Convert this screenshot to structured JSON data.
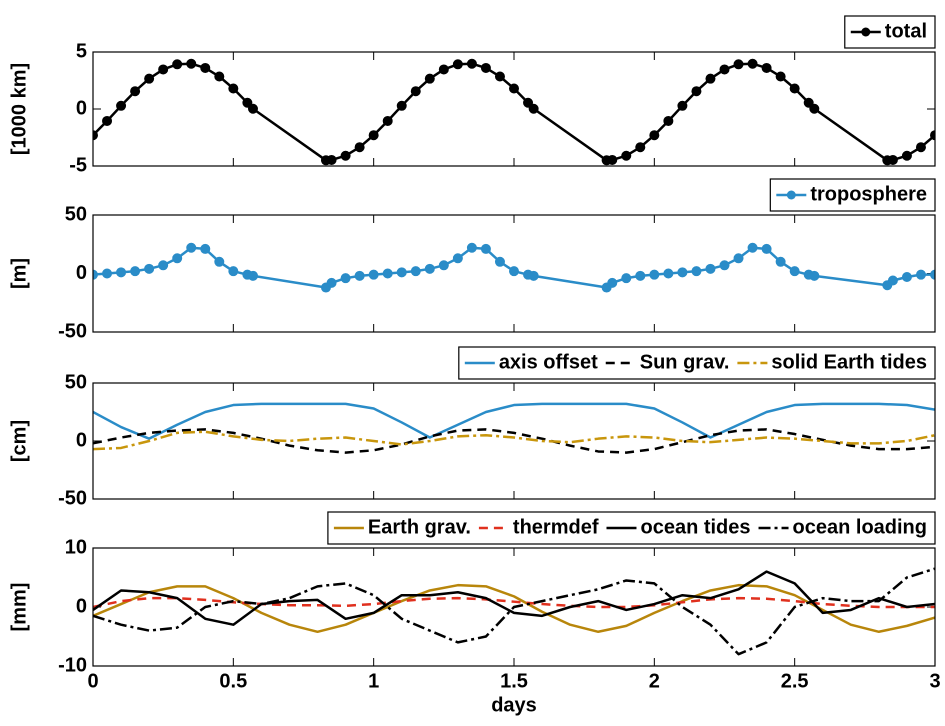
{
  "chart_data": [
    {
      "type": "line",
      "ylabel": "[1000 km]",
      "legend": "upper right outside",
      "x": [
        0,
        0.05,
        0.1,
        0.15,
        0.2,
        0.25,
        0.3,
        0.35,
        0.4,
        0.45,
        0.5,
        0.55,
        0.57,
        0.83,
        0.85,
        0.9,
        0.95,
        1,
        1.05,
        1.1,
        1.15,
        1.2,
        1.25,
        1.3,
        1.35,
        1.4,
        1.45,
        1.5,
        1.55,
        1.57,
        1.83,
        1.85,
        1.9,
        1.95,
        2,
        2.05,
        2.1,
        2.15,
        2.2,
        2.25,
        2.3,
        2.35,
        2.4,
        2.45,
        2.5,
        2.55,
        2.57,
        2.83,
        2.85,
        2.9,
        2.95,
        3
      ],
      "xlim": [
        0,
        3
      ],
      "ylim": [
        -5,
        5
      ],
      "yticks": [
        -5,
        0,
        5
      ],
      "series": [
        {
          "name": "total",
          "color": "#000000",
          "dash": "solid",
          "marker": true,
          "values": [
            -2.3,
            -1.05,
            0.28,
            1.56,
            2.66,
            3.47,
            3.92,
            3.97,
            3.6,
            2.85,
            1.8,
            0.55,
            0.02,
            -4.5,
            -4.47,
            -4.1,
            -3.35,
            -2.3,
            -1.05,
            0.28,
            1.56,
            2.66,
            3.47,
            3.92,
            3.97,
            3.6,
            2.85,
            1.8,
            0.55,
            0.02,
            -4.5,
            -4.47,
            -4.1,
            -3.35,
            -2.3,
            -1.05,
            0.28,
            1.56,
            2.66,
            3.47,
            3.92,
            3.97,
            3.6,
            2.85,
            1.8,
            0.55,
            0.02,
            -4.5,
            -4.47,
            -4.1,
            -3.35,
            -2.3
          ]
        }
      ]
    },
    {
      "type": "line",
      "ylabel": "[m]",
      "legend": "upper right outside",
      "x": [
        0,
        0.05,
        0.1,
        0.15,
        0.2,
        0.25,
        0.3,
        0.35,
        0.4,
        0.45,
        0.5,
        0.55,
        0.57,
        0.83,
        0.85,
        0.9,
        0.95,
        1,
        1.05,
        1.1,
        1.15,
        1.2,
        1.25,
        1.3,
        1.35,
        1.4,
        1.45,
        1.5,
        1.55,
        1.57,
        1.83,
        1.85,
        1.9,
        1.95,
        2,
        2.05,
        2.1,
        2.15,
        2.2,
        2.25,
        2.3,
        2.35,
        2.4,
        2.45,
        2.5,
        2.55,
        2.57,
        2.83,
        2.85,
        2.9,
        2.95,
        3
      ],
      "xlim": [
        0,
        3
      ],
      "ylim": [
        -50,
        50
      ],
      "yticks": [
        -50,
        0,
        50
      ],
      "series": [
        {
          "name": "troposphere",
          "color": "#2a8cc8",
          "dash": "solid",
          "marker": true,
          "values": [
            -1,
            0,
            1,
            2,
            4,
            7,
            13,
            22,
            21,
            10,
            2,
            -1,
            -2,
            -12,
            -8,
            -4,
            -2,
            -1,
            0,
            1,
            2,
            4,
            7,
            13,
            22,
            21,
            10,
            2,
            -1,
            -2,
            -12,
            -8,
            -4,
            -2,
            -1,
            0,
            1,
            2,
            4,
            7,
            13,
            22,
            21,
            10,
            2,
            -1,
            -2,
            -10,
            -6,
            -3,
            -1,
            -1
          ]
        }
      ]
    },
    {
      "type": "line",
      "ylabel": "[cm]",
      "legend": "upper right outside",
      "x": [
        0,
        0.1,
        0.2,
        0.3,
        0.4,
        0.5,
        0.6,
        0.7,
        0.8,
        0.9,
        1,
        1.1,
        1.2,
        1.3,
        1.4,
        1.5,
        1.6,
        1.7,
        1.8,
        1.9,
        2,
        2.1,
        2.2,
        2.3,
        2.4,
        2.5,
        2.6,
        2.7,
        2.8,
        2.9,
        3
      ],
      "xlim": [
        0,
        3
      ],
      "ylim": [
        -50,
        50
      ],
      "yticks": [
        -50,
        0,
        50
      ],
      "series": [
        {
          "name": "axis offset",
          "color": "#2a8cc8",
          "dash": "solid",
          "marker": false,
          "values": [
            25,
            12,
            2,
            14,
            25,
            31,
            32,
            32,
            32,
            32,
            28,
            16,
            3,
            14,
            25,
            31,
            32,
            32,
            32,
            32,
            28,
            16,
            3,
            14,
            25,
            31,
            32,
            32,
            32,
            31,
            27
          ]
        },
        {
          "name": "Sun grav.",
          "color": "#000000",
          "dash": "dashed",
          "marker": false,
          "values": [
            -2,
            3,
            7,
            9,
            10,
            7,
            2,
            -4,
            -8,
            -10,
            -8,
            -3,
            4,
            9,
            10,
            7,
            2,
            -4,
            -9,
            -10,
            -7,
            -1,
            5,
            9,
            10,
            6,
            1,
            -4,
            -7,
            -7,
            -5
          ]
        },
        {
          "name": "solid Earth tides",
          "color": "#c8960c",
          "dash": "dashdot",
          "marker": false,
          "values": [
            -7,
            -6,
            0,
            7,
            8,
            4,
            1,
            0,
            2,
            3,
            0,
            -3,
            0,
            4,
            5,
            3,
            0,
            -1,
            2,
            4,
            3,
            0,
            -1,
            1,
            3,
            2,
            0,
            -2,
            -2,
            0,
            5
          ]
        }
      ]
    },
    {
      "type": "line",
      "ylabel": "[mm]",
      "xlabel": "days",
      "legend": "upper right outside",
      "x": [
        0,
        0.1,
        0.2,
        0.3,
        0.4,
        0.5,
        0.6,
        0.7,
        0.8,
        0.9,
        1,
        1.1,
        1.2,
        1.3,
        1.4,
        1.5,
        1.6,
        1.7,
        1.8,
        1.9,
        2,
        2.1,
        2.2,
        2.3,
        2.4,
        2.5,
        2.6,
        2.7,
        2.8,
        2.9,
        3
      ],
      "xlim": [
        0,
        3
      ],
      "xticks": [
        0,
        0.5,
        1,
        1.5,
        2,
        2.5,
        3
      ],
      "ylim": [
        -10,
        10
      ],
      "yticks": [
        -10,
        0,
        10
      ],
      "series": [
        {
          "name": "Earth grav.",
          "color": "#b8860b",
          "dash": "solid",
          "marker": false,
          "values": [
            -1.5,
            0.5,
            2.5,
            3.5,
            3.5,
            1.5,
            -1,
            -3,
            -4.2,
            -3,
            -1,
            1,
            2.8,
            3.7,
            3.5,
            1.8,
            -0.8,
            -3,
            -4.2,
            -3.2,
            -1,
            1,
            2.8,
            3.7,
            3.5,
            2,
            -0.5,
            -3,
            -4.2,
            -3.2,
            -1.8
          ]
        },
        {
          "name": "thermdef",
          "color": "#e0301e",
          "dash": "dashed",
          "marker": false,
          "values": [
            0,
            1,
            1.5,
            1.5,
            1.2,
            0.8,
            0.5,
            0.3,
            0.3,
            0.2,
            0.5,
            1,
            1.4,
            1.5,
            1.3,
            0.9,
            0.5,
            0.2,
            0,
            0,
            0.3,
            0.8,
            1.3,
            1.5,
            1.4,
            1,
            0.5,
            0.2,
            0,
            0,
            0
          ]
        },
        {
          "name": "ocean tides",
          "color": "#000000",
          "dash": "solid",
          "marker": false,
          "values": [
            -0.5,
            2.8,
            2.5,
            1.5,
            -2,
            -3,
            0.5,
            1,
            1.2,
            -2,
            -1,
            2,
            2,
            2.5,
            1.5,
            -1,
            -1.5,
            0,
            1,
            -0.5,
            0.5,
            2,
            1.5,
            3,
            6,
            4,
            -1,
            -0.5,
            1.5,
            0,
            0.5
          ]
        },
        {
          "name": "ocean loading",
          "color": "#000000",
          "dash": "dashdot",
          "marker": false,
          "values": [
            -1.5,
            -3,
            -4,
            -3.5,
            0,
            1,
            0.5,
            1.5,
            3.5,
            4,
            2,
            -2,
            -4,
            -6,
            -5,
            0,
            1,
            2,
            3,
            4.5,
            4,
            0,
            -3,
            -8,
            -6,
            0,
            1.5,
            1,
            1,
            5,
            6.5
          ]
        }
      ]
    }
  ]
}
